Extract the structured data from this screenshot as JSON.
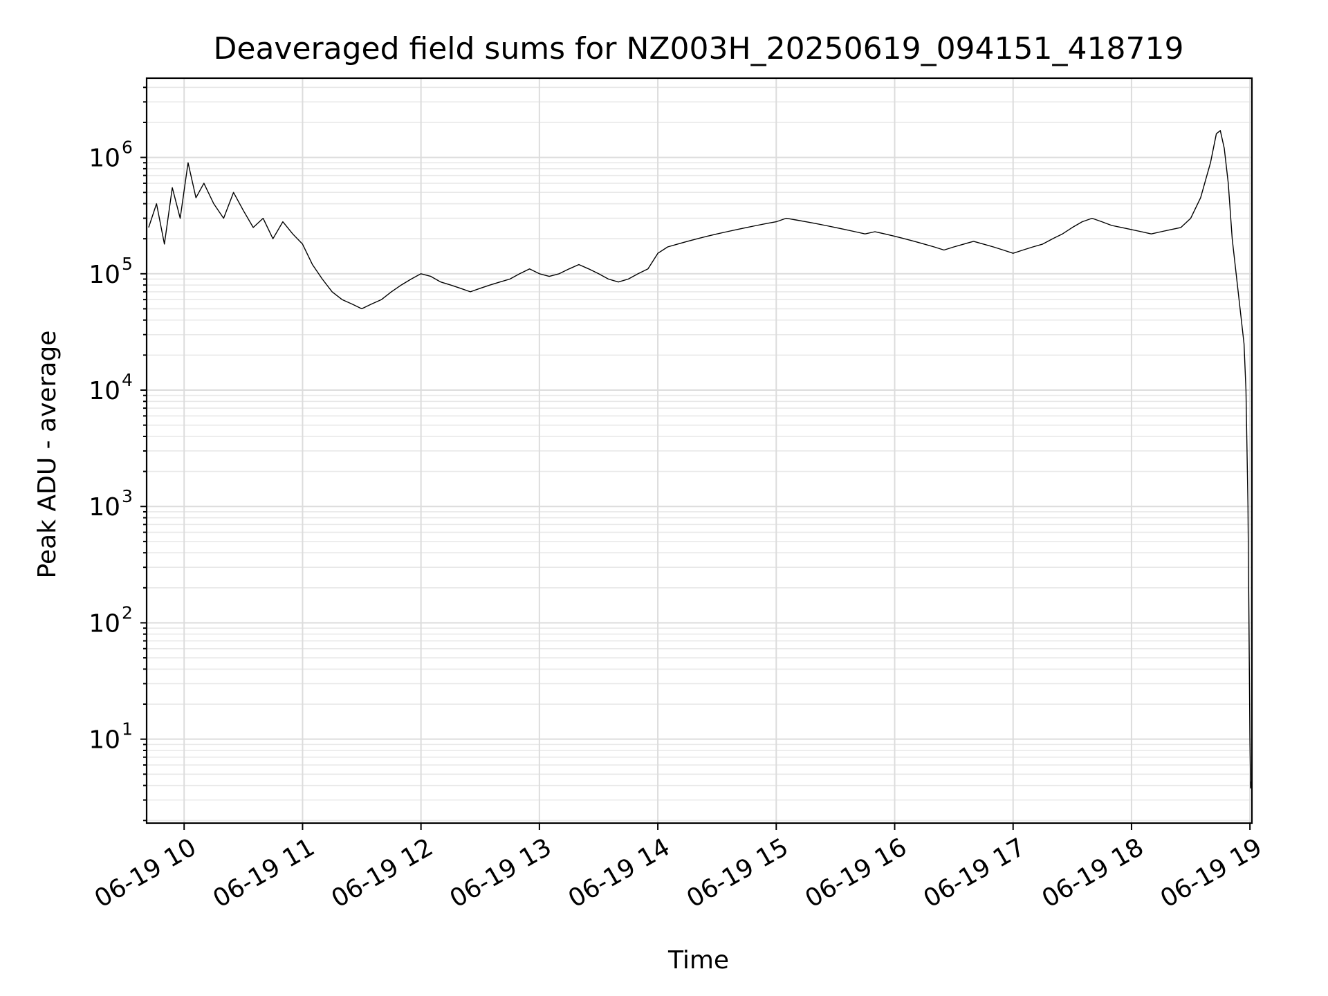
{
  "chart_data": {
    "type": "line",
    "title": "Deaveraged field sums for NZ003H_20250619_094151_418719",
    "xlabel": "Time",
    "ylabel": "Peak ADU - average",
    "yscale": "log",
    "grid": "on (major and minor)",
    "legend": "none",
    "x_ticks": [
      "06-19 10",
      "06-19 11",
      "06-19 12",
      "06-19 13",
      "06-19 14",
      "06-19 15",
      "06-19 16",
      "06-19 17",
      "06-19 18",
      "06-19 19"
    ],
    "y_ticks": [
      {
        "value": 10,
        "base": "10",
        "exp": "1"
      },
      {
        "value": 100,
        "base": "10",
        "exp": "2"
      },
      {
        "value": 1000,
        "base": "10",
        "exp": "3"
      },
      {
        "value": 10000,
        "base": "10",
        "exp": "4"
      },
      {
        "value": 100000,
        "base": "10",
        "exp": "5"
      },
      {
        "value": 1000000,
        "base": "10",
        "exp": "6"
      }
    ],
    "xlim": [
      "2025-06-19 09:41",
      "2025-06-19 19:01"
    ],
    "ylim": [
      1.9,
      4800000
    ],
    "series": [
      {
        "color": "#000000",
        "points": [
          [
            "2025-06-19 09:42",
            250000
          ],
          [
            "2025-06-19 09:46",
            400000
          ],
          [
            "2025-06-19 09:50",
            180000
          ],
          [
            "2025-06-19 09:54",
            550000
          ],
          [
            "2025-06-19 09:58",
            300000
          ],
          [
            "2025-06-19 10:02",
            900000
          ],
          [
            "2025-06-19 10:06",
            450000
          ],
          [
            "2025-06-19 10:10",
            600000
          ],
          [
            "2025-06-19 10:15",
            400000
          ],
          [
            "2025-06-19 10:20",
            300000
          ],
          [
            "2025-06-19 10:25",
            500000
          ],
          [
            "2025-06-19 10:30",
            350000
          ],
          [
            "2025-06-19 10:35",
            250000
          ],
          [
            "2025-06-19 10:40",
            300000
          ],
          [
            "2025-06-19 10:45",
            200000
          ],
          [
            "2025-06-19 10:50",
            280000
          ],
          [
            "2025-06-19 10:55",
            220000
          ],
          [
            "2025-06-19 11:00",
            180000
          ],
          [
            "2025-06-19 11:05",
            120000
          ],
          [
            "2025-06-19 11:10",
            90000
          ],
          [
            "2025-06-19 11:15",
            70000
          ],
          [
            "2025-06-19 11:20",
            60000
          ],
          [
            "2025-06-19 11:25",
            55000
          ],
          [
            "2025-06-19 11:30",
            50000
          ],
          [
            "2025-06-19 11:35",
            55000
          ],
          [
            "2025-06-19 11:40",
            60000
          ],
          [
            "2025-06-19 11:45",
            70000
          ],
          [
            "2025-06-19 11:50",
            80000
          ],
          [
            "2025-06-19 11:55",
            90000
          ],
          [
            "2025-06-19 12:00",
            100000
          ],
          [
            "2025-06-19 12:05",
            95000
          ],
          [
            "2025-06-19 12:10",
            85000
          ],
          [
            "2025-06-19 12:15",
            80000
          ],
          [
            "2025-06-19 12:20",
            75000
          ],
          [
            "2025-06-19 12:25",
            70000
          ],
          [
            "2025-06-19 12:30",
            75000
          ],
          [
            "2025-06-19 12:35",
            80000
          ],
          [
            "2025-06-19 12:40",
            85000
          ],
          [
            "2025-06-19 12:45",
            90000
          ],
          [
            "2025-06-19 12:50",
            100000
          ],
          [
            "2025-06-19 12:55",
            110000
          ],
          [
            "2025-06-19 13:00",
            100000
          ],
          [
            "2025-06-19 13:05",
            95000
          ],
          [
            "2025-06-19 13:10",
            100000
          ],
          [
            "2025-06-19 13:15",
            110000
          ],
          [
            "2025-06-19 13:20",
            120000
          ],
          [
            "2025-06-19 13:25",
            110000
          ],
          [
            "2025-06-19 13:30",
            100000
          ],
          [
            "2025-06-19 13:35",
            90000
          ],
          [
            "2025-06-19 13:40",
            85000
          ],
          [
            "2025-06-19 13:45",
            90000
          ],
          [
            "2025-06-19 13:50",
            100000
          ],
          [
            "2025-06-19 13:55",
            110000
          ],
          [
            "2025-06-19 14:00",
            150000
          ],
          [
            "2025-06-19 14:05",
            170000
          ],
          [
            "2025-06-19 14:10",
            180000
          ],
          [
            "2025-06-19 14:15",
            190000
          ],
          [
            "2025-06-19 14:20",
            200000
          ],
          [
            "2025-06-19 14:25",
            210000
          ],
          [
            "2025-06-19 14:30",
            220000
          ],
          [
            "2025-06-19 14:35",
            230000
          ],
          [
            "2025-06-19 14:40",
            240000
          ],
          [
            "2025-06-19 14:45",
            250000
          ],
          [
            "2025-06-19 14:50",
            260000
          ],
          [
            "2025-06-19 14:55",
            270000
          ],
          [
            "2025-06-19 15:00",
            280000
          ],
          [
            "2025-06-19 15:05",
            300000
          ],
          [
            "2025-06-19 15:10",
            290000
          ],
          [
            "2025-06-19 15:15",
            280000
          ],
          [
            "2025-06-19 15:20",
            270000
          ],
          [
            "2025-06-19 15:25",
            260000
          ],
          [
            "2025-06-19 15:30",
            250000
          ],
          [
            "2025-06-19 15:35",
            240000
          ],
          [
            "2025-06-19 15:40",
            230000
          ],
          [
            "2025-06-19 15:45",
            220000
          ],
          [
            "2025-06-19 15:50",
            230000
          ],
          [
            "2025-06-19 15:55",
            220000
          ],
          [
            "2025-06-19 16:00",
            210000
          ],
          [
            "2025-06-19 16:05",
            200000
          ],
          [
            "2025-06-19 16:10",
            190000
          ],
          [
            "2025-06-19 16:15",
            180000
          ],
          [
            "2025-06-19 16:20",
            170000
          ],
          [
            "2025-06-19 16:25",
            160000
          ],
          [
            "2025-06-19 16:30",
            170000
          ],
          [
            "2025-06-19 16:35",
            180000
          ],
          [
            "2025-06-19 16:40",
            190000
          ],
          [
            "2025-06-19 16:45",
            180000
          ],
          [
            "2025-06-19 16:50",
            170000
          ],
          [
            "2025-06-19 16:55",
            160000
          ],
          [
            "2025-06-19 17:00",
            150000
          ],
          [
            "2025-06-19 17:05",
            160000
          ],
          [
            "2025-06-19 17:10",
            170000
          ],
          [
            "2025-06-19 17:15",
            180000
          ],
          [
            "2025-06-19 17:20",
            200000
          ],
          [
            "2025-06-19 17:25",
            220000
          ],
          [
            "2025-06-19 17:30",
            250000
          ],
          [
            "2025-06-19 17:35",
            280000
          ],
          [
            "2025-06-19 17:40",
            300000
          ],
          [
            "2025-06-19 17:45",
            280000
          ],
          [
            "2025-06-19 17:50",
            260000
          ],
          [
            "2025-06-19 17:55",
            250000
          ],
          [
            "2025-06-19 18:00",
            240000
          ],
          [
            "2025-06-19 18:05",
            230000
          ],
          [
            "2025-06-19 18:10",
            220000
          ],
          [
            "2025-06-19 18:15",
            230000
          ],
          [
            "2025-06-19 18:20",
            240000
          ],
          [
            "2025-06-19 18:25",
            250000
          ],
          [
            "2025-06-19 18:30",
            300000
          ],
          [
            "2025-06-19 18:35",
            450000
          ],
          [
            "2025-06-19 18:40",
            900000
          ],
          [
            "2025-06-19 18:43",
            1600000
          ],
          [
            "2025-06-19 18:45",
            1700000
          ],
          [
            "2025-06-19 18:47",
            1200000
          ],
          [
            "2025-06-19 18:49",
            600000
          ],
          [
            "2025-06-19 18:51",
            200000
          ],
          [
            "2025-06-19 18:53",
            100000
          ],
          [
            "2025-06-19 18:55",
            50000
          ],
          [
            "2025-06-19 18:57",
            25000
          ],
          [
            "2025-06-19 18:58",
            10000
          ],
          [
            "2025-06-19 18:59",
            1000
          ],
          [
            "2025-06-19 18:59:30",
            100
          ],
          [
            "2025-06-19 19:00",
            10
          ],
          [
            "2025-06-19 19:00:20",
            3.8
          ],
          [
            "2025-06-19 19:01",
            4.5
          ]
        ]
      }
    ]
  }
}
